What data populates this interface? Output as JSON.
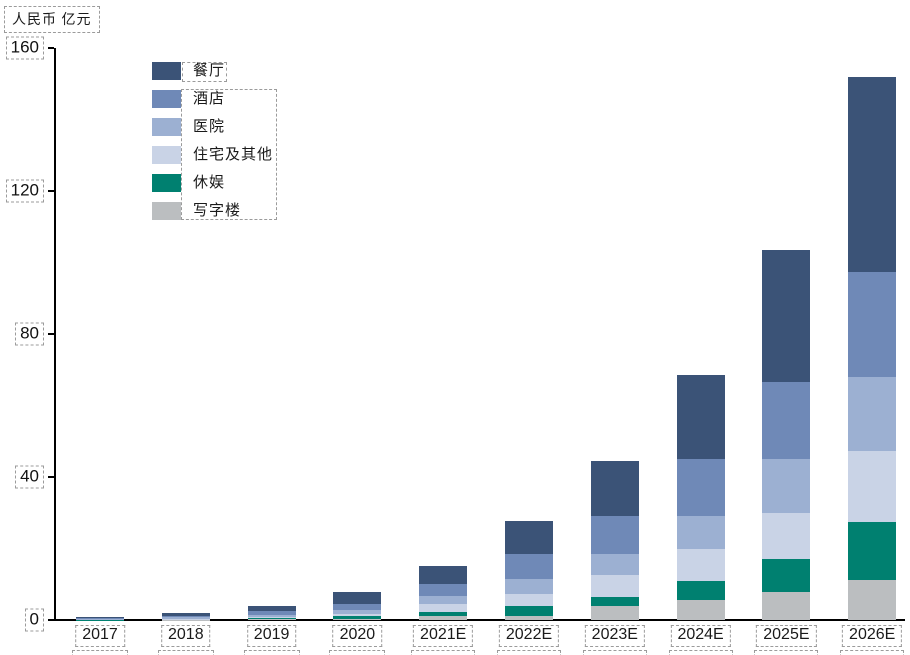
{
  "page": {
    "background": "#ffffff"
  },
  "annotations": {
    "box_style": "dashed",
    "box_color": "#9b9b9b"
  },
  "chart_data": {
    "type": "bar",
    "stacked": true,
    "title": "",
    "ylabel": "人民币 亿元",
    "xlabel": "",
    "ylim": [
      0,
      160
    ],
    "yticks": [
      "0",
      "40",
      "80",
      "120",
      "160"
    ],
    "grid": false,
    "legend_position": "upper-left-inside",
    "categories": [
      "2017",
      "2018",
      "2019",
      "2020",
      "2021E",
      "2022E",
      "2023E",
      "2024E",
      "2025E",
      "2026E"
    ],
    "series": [
      {
        "name": "餐厅",
        "color": "#3b5377",
        "values": [
          0.3,
          0.7,
          1.5,
          3.2,
          4.8,
          9.3,
          15.6,
          23.5,
          36.9,
          54.6
        ]
      },
      {
        "name": "酒店",
        "color": "#6f89b7",
        "values": [
          0.2,
          0.5,
          1.0,
          1.9,
          3.5,
          6.8,
          10.6,
          15.8,
          21.6,
          29.4
        ]
      },
      {
        "name": "医院",
        "color": "#9cb0d2",
        "values": [
          0.1,
          0.3,
          0.6,
          0.9,
          2.1,
          4.2,
          5.9,
          9.3,
          14.9,
          20.7
        ]
      },
      {
        "name": "住宅及其他",
        "color": "#c9d3e6",
        "values": [
          0.1,
          0.2,
          0.4,
          0.8,
          2.3,
          3.5,
          6.0,
          8.8,
          13.0,
          20.0
        ]
      },
      {
        "name": "休娱",
        "color": "#008070",
        "values": [
          0.05,
          0.1,
          0.3,
          0.6,
          1.1,
          2.8,
          2.6,
          5.4,
          9.3,
          16.2
        ]
      },
      {
        "name": "写字楼",
        "color": "#bbbec0",
        "values": [
          0.05,
          0.1,
          0.2,
          0.4,
          1.2,
          1.1,
          3.9,
          5.6,
          7.7,
          11.1
        ]
      }
    ],
    "stack_order_bottom_to_top": [
      "写字楼",
      "休娱",
      "住宅及其他",
      "医院",
      "酒店",
      "餐厅"
    ],
    "totals": [
      0.8,
      1.9,
      4.0,
      7.8,
      15.0,
      27.7,
      44.6,
      68.4,
      103.4,
      152.0
    ]
  }
}
